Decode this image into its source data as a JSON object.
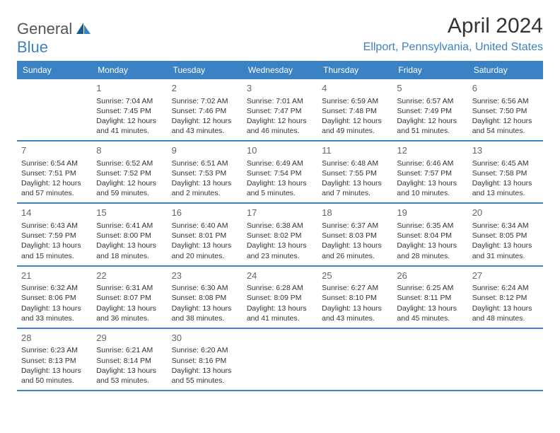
{
  "logo": {
    "word1": "General",
    "word2": "Blue"
  },
  "title": "April 2024",
  "location": "Ellport, Pennsylvania, United States",
  "colors": {
    "brand_blue": "#3b82c4",
    "header_text": "#ffffff",
    "text": "#333333",
    "day_num": "#666666",
    "background": "#ffffff"
  },
  "weekdays": [
    "Sunday",
    "Monday",
    "Tuesday",
    "Wednesday",
    "Thursday",
    "Friday",
    "Saturday"
  ],
  "weeks": [
    [
      null,
      {
        "n": "1",
        "sr": "Sunrise: 7:04 AM",
        "ss": "Sunset: 7:45 PM",
        "dl": "Daylight: 12 hours and 41 minutes."
      },
      {
        "n": "2",
        "sr": "Sunrise: 7:02 AM",
        "ss": "Sunset: 7:46 PM",
        "dl": "Daylight: 12 hours and 43 minutes."
      },
      {
        "n": "3",
        "sr": "Sunrise: 7:01 AM",
        "ss": "Sunset: 7:47 PM",
        "dl": "Daylight: 12 hours and 46 minutes."
      },
      {
        "n": "4",
        "sr": "Sunrise: 6:59 AM",
        "ss": "Sunset: 7:48 PM",
        "dl": "Daylight: 12 hours and 49 minutes."
      },
      {
        "n": "5",
        "sr": "Sunrise: 6:57 AM",
        "ss": "Sunset: 7:49 PM",
        "dl": "Daylight: 12 hours and 51 minutes."
      },
      {
        "n": "6",
        "sr": "Sunrise: 6:56 AM",
        "ss": "Sunset: 7:50 PM",
        "dl": "Daylight: 12 hours and 54 minutes."
      }
    ],
    [
      {
        "n": "7",
        "sr": "Sunrise: 6:54 AM",
        "ss": "Sunset: 7:51 PM",
        "dl": "Daylight: 12 hours and 57 minutes."
      },
      {
        "n": "8",
        "sr": "Sunrise: 6:52 AM",
        "ss": "Sunset: 7:52 PM",
        "dl": "Daylight: 12 hours and 59 minutes."
      },
      {
        "n": "9",
        "sr": "Sunrise: 6:51 AM",
        "ss": "Sunset: 7:53 PM",
        "dl": "Daylight: 13 hours and 2 minutes."
      },
      {
        "n": "10",
        "sr": "Sunrise: 6:49 AM",
        "ss": "Sunset: 7:54 PM",
        "dl": "Daylight: 13 hours and 5 minutes."
      },
      {
        "n": "11",
        "sr": "Sunrise: 6:48 AM",
        "ss": "Sunset: 7:55 PM",
        "dl": "Daylight: 13 hours and 7 minutes."
      },
      {
        "n": "12",
        "sr": "Sunrise: 6:46 AM",
        "ss": "Sunset: 7:57 PM",
        "dl": "Daylight: 13 hours and 10 minutes."
      },
      {
        "n": "13",
        "sr": "Sunrise: 6:45 AM",
        "ss": "Sunset: 7:58 PM",
        "dl": "Daylight: 13 hours and 13 minutes."
      }
    ],
    [
      {
        "n": "14",
        "sr": "Sunrise: 6:43 AM",
        "ss": "Sunset: 7:59 PM",
        "dl": "Daylight: 13 hours and 15 minutes."
      },
      {
        "n": "15",
        "sr": "Sunrise: 6:41 AM",
        "ss": "Sunset: 8:00 PM",
        "dl": "Daylight: 13 hours and 18 minutes."
      },
      {
        "n": "16",
        "sr": "Sunrise: 6:40 AM",
        "ss": "Sunset: 8:01 PM",
        "dl": "Daylight: 13 hours and 20 minutes."
      },
      {
        "n": "17",
        "sr": "Sunrise: 6:38 AM",
        "ss": "Sunset: 8:02 PM",
        "dl": "Daylight: 13 hours and 23 minutes."
      },
      {
        "n": "18",
        "sr": "Sunrise: 6:37 AM",
        "ss": "Sunset: 8:03 PM",
        "dl": "Daylight: 13 hours and 26 minutes."
      },
      {
        "n": "19",
        "sr": "Sunrise: 6:35 AM",
        "ss": "Sunset: 8:04 PM",
        "dl": "Daylight: 13 hours and 28 minutes."
      },
      {
        "n": "20",
        "sr": "Sunrise: 6:34 AM",
        "ss": "Sunset: 8:05 PM",
        "dl": "Daylight: 13 hours and 31 minutes."
      }
    ],
    [
      {
        "n": "21",
        "sr": "Sunrise: 6:32 AM",
        "ss": "Sunset: 8:06 PM",
        "dl": "Daylight: 13 hours and 33 minutes."
      },
      {
        "n": "22",
        "sr": "Sunrise: 6:31 AM",
        "ss": "Sunset: 8:07 PM",
        "dl": "Daylight: 13 hours and 36 minutes."
      },
      {
        "n": "23",
        "sr": "Sunrise: 6:30 AM",
        "ss": "Sunset: 8:08 PM",
        "dl": "Daylight: 13 hours and 38 minutes."
      },
      {
        "n": "24",
        "sr": "Sunrise: 6:28 AM",
        "ss": "Sunset: 8:09 PM",
        "dl": "Daylight: 13 hours and 41 minutes."
      },
      {
        "n": "25",
        "sr": "Sunrise: 6:27 AM",
        "ss": "Sunset: 8:10 PM",
        "dl": "Daylight: 13 hours and 43 minutes."
      },
      {
        "n": "26",
        "sr": "Sunrise: 6:25 AM",
        "ss": "Sunset: 8:11 PM",
        "dl": "Daylight: 13 hours and 45 minutes."
      },
      {
        "n": "27",
        "sr": "Sunrise: 6:24 AM",
        "ss": "Sunset: 8:12 PM",
        "dl": "Daylight: 13 hours and 48 minutes."
      }
    ],
    [
      {
        "n": "28",
        "sr": "Sunrise: 6:23 AM",
        "ss": "Sunset: 8:13 PM",
        "dl": "Daylight: 13 hours and 50 minutes."
      },
      {
        "n": "29",
        "sr": "Sunrise: 6:21 AM",
        "ss": "Sunset: 8:14 PM",
        "dl": "Daylight: 13 hours and 53 minutes."
      },
      {
        "n": "30",
        "sr": "Sunrise: 6:20 AM",
        "ss": "Sunset: 8:16 PM",
        "dl": "Daylight: 13 hours and 55 minutes."
      },
      null,
      null,
      null,
      null
    ]
  ]
}
